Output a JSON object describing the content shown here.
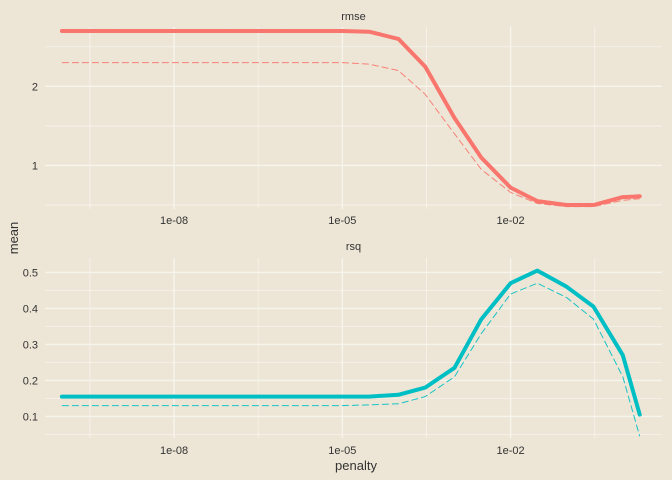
{
  "chart_data": {
    "type": "line",
    "xlabel": "penalty",
    "ylabel": "mean",
    "x_scale": "log10",
    "xlim": [
      5e-11,
      5.0
    ],
    "x_ticks": [
      1e-08,
      1e-05,
      0.01
    ],
    "x_tick_labels": [
      "1e-08",
      "1e-05",
      "1e-02"
    ],
    "x": [
      1e-10,
      1e-09,
      1e-08,
      1e-07,
      1e-06,
      1e-05,
      3e-05,
      0.0001,
      0.0003,
      0.001,
      0.003,
      0.01,
      0.03,
      0.1,
      0.3,
      1,
      2
    ],
    "panels": [
      {
        "name": "rmse",
        "color": "#F8766D",
        "ylim": [
          0.45,
          2.75
        ],
        "y_ticks": [
          1,
          2
        ],
        "y_tick_labels": [
          "1",
          "2"
        ],
        "mean": [
          2.7,
          2.7,
          2.7,
          2.7,
          2.7,
          2.7,
          2.69,
          2.6,
          2.25,
          1.6,
          1.1,
          0.72,
          0.55,
          0.5,
          0.5,
          0.6,
          0.61
        ],
        "lower": [
          2.3,
          2.3,
          2.3,
          2.3,
          2.3,
          2.3,
          2.28,
          2.2,
          1.9,
          1.4,
          0.95,
          0.66,
          0.52,
          0.48,
          0.48,
          0.56,
          0.58
        ]
      },
      {
        "name": "rsq",
        "color": "#00BFC4",
        "ylim": [
          0.04,
          0.54
        ],
        "y_ticks": [
          0.1,
          0.2,
          0.3,
          0.4,
          0.5
        ],
        "y_tick_labels": [
          "0.1",
          "0.2",
          "0.3",
          "0.4",
          "0.5"
        ],
        "mean": [
          0.155,
          0.155,
          0.155,
          0.155,
          0.155,
          0.155,
          0.155,
          0.16,
          0.18,
          0.235,
          0.37,
          0.47,
          0.505,
          0.46,
          0.405,
          0.27,
          0.105
        ],
        "lower": [
          0.13,
          0.13,
          0.13,
          0.13,
          0.13,
          0.13,
          0.132,
          0.135,
          0.155,
          0.21,
          0.33,
          0.44,
          0.47,
          0.43,
          0.37,
          0.21,
          0.045
        ]
      }
    ]
  }
}
